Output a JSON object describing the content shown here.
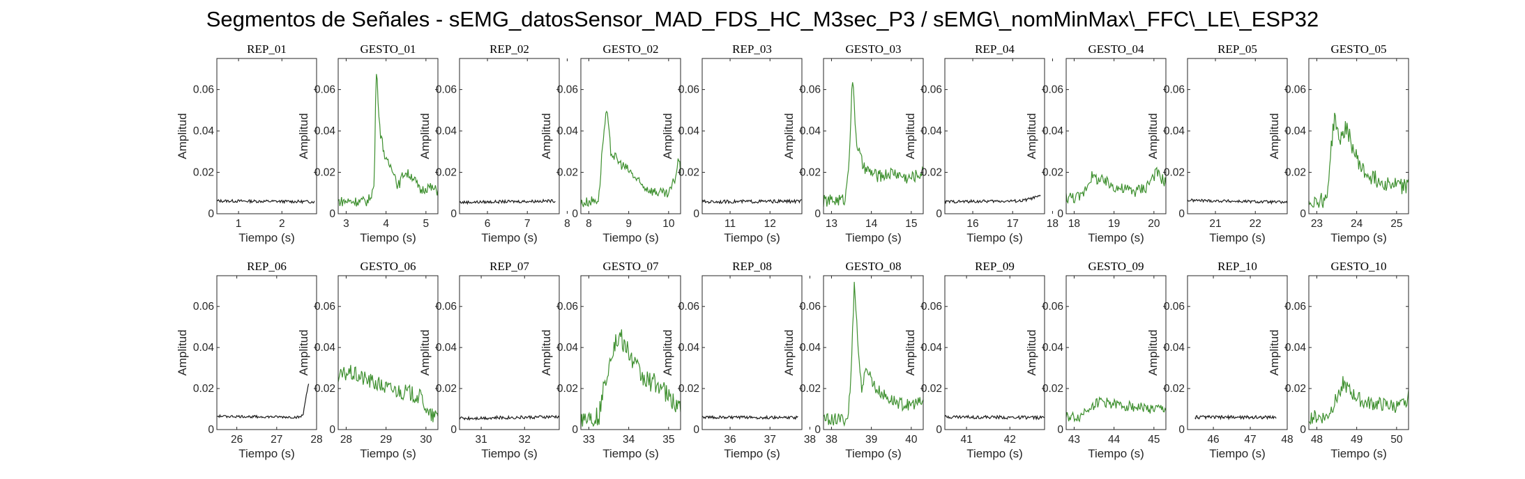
{
  "title": "Segmentos de Señales - sEMG_datosSensor_MAD_FDS_HC_M3sec_P3 / sEMG\\_nomMinMax\\_FFC\\_LE\\_ESP32",
  "colors": {
    "rep": "#1a1a1a",
    "gesto": "#3d8f2e",
    "axis": "#262626"
  },
  "chart_data": [
    {
      "name": "REP_01",
      "title": "REP_01",
      "type": "line",
      "color": "rep",
      "xlim": [
        0.5,
        2.8
      ],
      "ylim": [
        0,
        0.075
      ],
      "xticks": [
        1,
        2
      ],
      "yticks": [
        0,
        0.02,
        0.04,
        0.06
      ],
      "xlabel": "Tiempo (s)",
      "ylabel": "Amplitud",
      "x_range": [
        0.5,
        2.75
      ],
      "profile": [
        [
          0,
          0.0062
        ],
        [
          1,
          0.0058
        ]
      ],
      "noise": 0.0007
    },
    {
      "name": "GESTO_01",
      "title": "GESTO_01",
      "type": "line",
      "color": "gesto",
      "xlim": [
        2.8,
        5.3
      ],
      "ylim": [
        0,
        0.075
      ],
      "xticks": [
        3,
        4,
        5
      ],
      "yticks": [
        0,
        0.02,
        0.04,
        0.06
      ],
      "xlabel": "Tiempo (s)",
      "ylabel": "Amplitud",
      "x_range": [
        2.8,
        5.3
      ],
      "profile": [
        [
          0,
          0.006
        ],
        [
          0.3,
          0.006
        ],
        [
          0.36,
          0.013
        ],
        [
          0.37,
          0.035
        ],
        [
          0.38,
          0.072
        ],
        [
          0.42,
          0.04
        ],
        [
          0.48,
          0.025
        ],
        [
          0.55,
          0.022
        ],
        [
          0.6,
          0.013
        ],
        [
          0.66,
          0.02
        ],
        [
          0.75,
          0.018
        ],
        [
          0.82,
          0.011
        ],
        [
          0.9,
          0.013
        ],
        [
          1,
          0.011
        ]
      ],
      "noise": 0.0025
    },
    {
      "name": "REP_02",
      "title": "REP_02",
      "type": "line",
      "color": "rep",
      "xlim": [
        5.3,
        7.8
      ],
      "ylim": [
        0,
        0.075
      ],
      "xticks": [
        6,
        7,
        8
      ],
      "yticks": [
        0,
        0.02,
        0.04,
        0.06
      ],
      "xlabel": "Tiempo (s)",
      "ylabel": "Amplitud",
      "x_range": [
        5.3,
        7.7
      ],
      "profile": [
        [
          0,
          0.0055
        ],
        [
          1,
          0.0062
        ]
      ],
      "noise": 0.0007
    },
    {
      "name": "GESTO_02",
      "title": "GESTO_02",
      "type": "line",
      "color": "gesto",
      "xlim": [
        7.8,
        10.3
      ],
      "ylim": [
        0,
        0.075
      ],
      "xticks": [
        8,
        9,
        10
      ],
      "yticks": [
        0,
        0.02,
        0.04,
        0.06
      ],
      "xlabel": "Tiempo (s)",
      "ylabel": "Amplitud",
      "x_range": [
        7.8,
        10.3
      ],
      "profile": [
        [
          0,
          0.005
        ],
        [
          0.18,
          0.007
        ],
        [
          0.22,
          0.035
        ],
        [
          0.26,
          0.05
        ],
        [
          0.3,
          0.03
        ],
        [
          0.38,
          0.025
        ],
        [
          0.5,
          0.02
        ],
        [
          0.6,
          0.014
        ],
        [
          0.72,
          0.011
        ],
        [
          0.88,
          0.009
        ],
        [
          0.95,
          0.018
        ],
        [
          0.98,
          0.027
        ],
        [
          1,
          0.02
        ]
      ],
      "noise": 0.0025
    },
    {
      "name": "REP_03",
      "title": "REP_03",
      "type": "line",
      "color": "rep",
      "xlim": [
        10.3,
        12.8
      ],
      "ylim": [
        0,
        0.075
      ],
      "xticks": [
        11,
        12
      ],
      "yticks": [
        0,
        0.02,
        0.04,
        0.06
      ],
      "xlabel": "Tiempo (s)",
      "ylabel": "Amplitud",
      "x_range": [
        10.3,
        12.8
      ],
      "profile": [
        [
          0,
          0.0058
        ],
        [
          1,
          0.006
        ]
      ],
      "noise": 0.0008
    },
    {
      "name": "GESTO_03",
      "title": "GESTO_03",
      "type": "line",
      "color": "gesto",
      "xlim": [
        12.8,
        15.3
      ],
      "ylim": [
        0,
        0.075
      ],
      "xticks": [
        13,
        14,
        15
      ],
      "yticks": [
        0,
        0.02,
        0.04,
        0.06
      ],
      "xlabel": "Tiempo (s)",
      "ylabel": "Amplitud",
      "x_range": [
        12.8,
        15.3
      ],
      "profile": [
        [
          0,
          0.006
        ],
        [
          0.22,
          0.007
        ],
        [
          0.26,
          0.03
        ],
        [
          0.29,
          0.066
        ],
        [
          0.33,
          0.035
        ],
        [
          0.4,
          0.022
        ],
        [
          0.55,
          0.018
        ],
        [
          0.7,
          0.02
        ],
        [
          0.85,
          0.017
        ],
        [
          1,
          0.02
        ]
      ],
      "noise": 0.003
    },
    {
      "name": "REP_04",
      "title": "REP_04",
      "type": "line",
      "color": "rep",
      "xlim": [
        15.3,
        17.8
      ],
      "ylim": [
        0,
        0.075
      ],
      "xticks": [
        16,
        17,
        18
      ],
      "yticks": [
        0,
        0.02,
        0.04,
        0.06
      ],
      "xlabel": "Tiempo (s)",
      "ylabel": "Amplitud",
      "x_range": [
        15.3,
        17.7
      ],
      "profile": [
        [
          0,
          0.0058
        ],
        [
          0.8,
          0.0062
        ],
        [
          1,
          0.0085
        ]
      ],
      "noise": 0.0007
    },
    {
      "name": "GESTO_04",
      "title": "GESTO_04",
      "type": "line",
      "color": "gesto",
      "xlim": [
        17.8,
        20.3
      ],
      "ylim": [
        0,
        0.075
      ],
      "xticks": [
        18,
        19,
        20
      ],
      "yticks": [
        0,
        0.02,
        0.04,
        0.06
      ],
      "xlabel": "Tiempo (s)",
      "ylabel": "Amplitud",
      "x_range": [
        17.8,
        20.3
      ],
      "profile": [
        [
          0,
          0.008
        ],
        [
          0.15,
          0.008
        ],
        [
          0.25,
          0.018
        ],
        [
          0.4,
          0.015
        ],
        [
          0.55,
          0.012
        ],
        [
          0.7,
          0.011
        ],
        [
          0.8,
          0.013
        ],
        [
          0.9,
          0.02
        ],
        [
          1,
          0.015
        ]
      ],
      "noise": 0.003
    },
    {
      "name": "REP_05",
      "title": "REP_05",
      "type": "line",
      "color": "rep",
      "xlim": [
        20.3,
        22.8
      ],
      "ylim": [
        0,
        0.075
      ],
      "xticks": [
        21,
        22
      ],
      "yticks": [
        0,
        0.02,
        0.04,
        0.06
      ],
      "xlabel": "Tiempo (s)",
      "ylabel": "Amplitud",
      "x_range": [
        20.3,
        22.8
      ],
      "profile": [
        [
          0,
          0.0065
        ],
        [
          1,
          0.0055
        ]
      ],
      "noise": 0.0007
    },
    {
      "name": "GESTO_05",
      "title": "GESTO_05",
      "type": "line",
      "color": "gesto",
      "xlim": [
        22.8,
        25.3
      ],
      "ylim": [
        0,
        0.075
      ],
      "xticks": [
        23,
        24,
        25
      ],
      "yticks": [
        0,
        0.02,
        0.04,
        0.06
      ],
      "xlabel": "Tiempo (s)",
      "ylabel": "Amplitud",
      "x_range": [
        22.8,
        25.3
      ],
      "profile": [
        [
          0,
          0.006
        ],
        [
          0.18,
          0.007
        ],
        [
          0.22,
          0.03
        ],
        [
          0.26,
          0.048
        ],
        [
          0.3,
          0.035
        ],
        [
          0.38,
          0.042
        ],
        [
          0.45,
          0.03
        ],
        [
          0.55,
          0.02
        ],
        [
          0.7,
          0.016
        ],
        [
          0.85,
          0.014
        ],
        [
          1,
          0.013
        ]
      ],
      "noise": 0.004
    },
    {
      "name": "REP_06",
      "title": "REP_06",
      "type": "line",
      "color": "rep",
      "xlim": [
        25.5,
        28
      ],
      "ylim": [
        0,
        0.075
      ],
      "xticks": [
        26,
        27,
        28
      ],
      "yticks": [
        0,
        0.02,
        0.04,
        0.06
      ],
      "xlabel": "Tiempo (s)",
      "ylabel": "Amplitud",
      "x_range": [
        25.5,
        27.8
      ],
      "profile": [
        [
          0,
          0.0065
        ],
        [
          0.9,
          0.006
        ],
        [
          0.94,
          0.007
        ],
        [
          0.97,
          0.016
        ],
        [
          1,
          0.022
        ]
      ],
      "noise": 0.0006
    },
    {
      "name": "GESTO_06",
      "title": "GESTO_06",
      "type": "line",
      "color": "gesto",
      "xlim": [
        27.8,
        30.3
      ],
      "ylim": [
        0,
        0.075
      ],
      "xticks": [
        28,
        29,
        30
      ],
      "yticks": [
        0,
        0.02,
        0.04,
        0.06
      ],
      "xlabel": "Tiempo (s)",
      "ylabel": "Amplitud",
      "x_range": [
        27.8,
        30.3
      ],
      "profile": [
        [
          0,
          0.025
        ],
        [
          0.1,
          0.028
        ],
        [
          0.3,
          0.024
        ],
        [
          0.5,
          0.02
        ],
        [
          0.7,
          0.018
        ],
        [
          0.85,
          0.015
        ],
        [
          0.9,
          0.007
        ],
        [
          1,
          0.006
        ]
      ],
      "noise": 0.004
    },
    {
      "name": "REP_07",
      "title": "REP_07",
      "type": "line",
      "color": "rep",
      "xlim": [
        30.5,
        32.8
      ],
      "ylim": [
        0,
        0.075
      ],
      "xticks": [
        31,
        32
      ],
      "yticks": [
        0,
        0.02,
        0.04,
        0.06
      ],
      "xlabel": "Tiempo (s)",
      "ylabel": "Amplitud",
      "x_range": [
        30.5,
        32.8
      ],
      "profile": [
        [
          0,
          0.0055
        ],
        [
          1,
          0.0062
        ]
      ],
      "noise": 0.0008
    },
    {
      "name": "GESTO_07",
      "title": "GESTO_07",
      "type": "line",
      "color": "gesto",
      "xlim": [
        32.8,
        35.3
      ],
      "ylim": [
        0,
        0.075
      ],
      "xticks": [
        33,
        34,
        35
      ],
      "yticks": [
        0,
        0.02,
        0.04,
        0.06
      ],
      "xlabel": "Tiempo (s)",
      "ylabel": "Amplitud",
      "x_range": [
        32.8,
        35.3
      ],
      "profile": [
        [
          0,
          0.006
        ],
        [
          0.18,
          0.006
        ],
        [
          0.25,
          0.025
        ],
        [
          0.32,
          0.04
        ],
        [
          0.4,
          0.045
        ],
        [
          0.5,
          0.035
        ],
        [
          0.62,
          0.025
        ],
        [
          0.78,
          0.022
        ],
        [
          0.9,
          0.014
        ],
        [
          1,
          0.012
        ]
      ],
      "noise": 0.005
    },
    {
      "name": "REP_08",
      "title": "REP_08",
      "type": "line",
      "color": "rep",
      "xlim": [
        35.3,
        37.8
      ],
      "ylim": [
        0,
        0.075
      ],
      "xticks": [
        36,
        37,
        38
      ],
      "yticks": [
        0,
        0.02,
        0.04,
        0.06
      ],
      "xlabel": "Tiempo (s)",
      "ylabel": "Amplitud",
      "x_range": [
        35.3,
        37.7
      ],
      "profile": [
        [
          0,
          0.006
        ],
        [
          1,
          0.0058
        ]
      ],
      "noise": 0.0007
    },
    {
      "name": "GESTO_08",
      "title": "GESTO_08",
      "type": "line",
      "color": "gesto",
      "xlim": [
        37.8,
        40.3
      ],
      "ylim": [
        0,
        0.075
      ],
      "xticks": [
        38,
        39,
        40
      ],
      "yticks": [
        0,
        0.02,
        0.04,
        0.06
      ],
      "xlabel": "Tiempo (s)",
      "ylabel": "Amplitud",
      "x_range": [
        37.8,
        40.3
      ],
      "profile": [
        [
          0,
          0.005
        ],
        [
          0.24,
          0.005
        ],
        [
          0.27,
          0.02
        ],
        [
          0.29,
          0.045
        ],
        [
          0.31,
          0.074
        ],
        [
          0.34,
          0.045
        ],
        [
          0.38,
          0.02
        ],
        [
          0.44,
          0.03
        ],
        [
          0.52,
          0.02
        ],
        [
          0.65,
          0.015
        ],
        [
          0.8,
          0.012
        ],
        [
          1,
          0.013
        ]
      ],
      "noise": 0.003
    },
    {
      "name": "REP_09",
      "title": "REP_09",
      "type": "line",
      "color": "rep",
      "xlim": [
        40.5,
        42.8
      ],
      "ylim": [
        0,
        0.075
      ],
      "xticks": [
        41,
        42
      ],
      "yticks": [
        0,
        0.02,
        0.04,
        0.06
      ],
      "xlabel": "Tiempo (s)",
      "ylabel": "Amplitud",
      "x_range": [
        40.5,
        42.8
      ],
      "profile": [
        [
          0,
          0.0062
        ],
        [
          1,
          0.0058
        ]
      ],
      "noise": 0.0008
    },
    {
      "name": "GESTO_09",
      "title": "GESTO_09",
      "type": "line",
      "color": "gesto",
      "xlim": [
        42.8,
        45.3
      ],
      "ylim": [
        0,
        0.075
      ],
      "xticks": [
        43,
        44,
        45
      ],
      "yticks": [
        0,
        0.02,
        0.04,
        0.06
      ],
      "xlabel": "Tiempo (s)",
      "ylabel": "Amplitud",
      "x_range": [
        42.8,
        45.3
      ],
      "profile": [
        [
          0,
          0.006
        ],
        [
          0.14,
          0.006
        ],
        [
          0.2,
          0.01
        ],
        [
          0.35,
          0.014
        ],
        [
          0.5,
          0.012
        ],
        [
          0.7,
          0.011
        ],
        [
          0.85,
          0.01
        ],
        [
          1,
          0.01
        ]
      ],
      "noise": 0.0025
    },
    {
      "name": "REP_10",
      "title": "REP_10",
      "type": "line",
      "color": "rep",
      "xlim": [
        45.3,
        48
      ],
      "ylim": [
        0,
        0.075
      ],
      "xticks": [
        46,
        47,
        48
      ],
      "yticks": [
        0,
        0.02,
        0.04,
        0.06
      ],
      "xlabel": "Tiempo (s)",
      "ylabel": "Amplitud",
      "x_range": [
        45.5,
        47.7
      ],
      "profile": [
        [
          0,
          0.006
        ],
        [
          1,
          0.006
        ]
      ],
      "noise": 0.0008
    },
    {
      "name": "GESTO_10",
      "title": "GESTO_10",
      "type": "line",
      "color": "gesto",
      "xlim": [
        47.8,
        50.3
      ],
      "ylim": [
        0,
        0.075
      ],
      "xticks": [
        48,
        49,
        50
      ],
      "yticks": [
        0,
        0.02,
        0.04,
        0.06
      ],
      "xlabel": "Tiempo (s)",
      "ylabel": "Amplitud",
      "x_range": [
        47.8,
        50.3
      ],
      "profile": [
        [
          0,
          0.006
        ],
        [
          0.18,
          0.006
        ],
        [
          0.28,
          0.015
        ],
        [
          0.34,
          0.023
        ],
        [
          0.42,
          0.018
        ],
        [
          0.55,
          0.013
        ],
        [
          0.75,
          0.012
        ],
        [
          0.92,
          0.011
        ],
        [
          1,
          0.016
        ]
      ],
      "noise": 0.0035
    }
  ]
}
